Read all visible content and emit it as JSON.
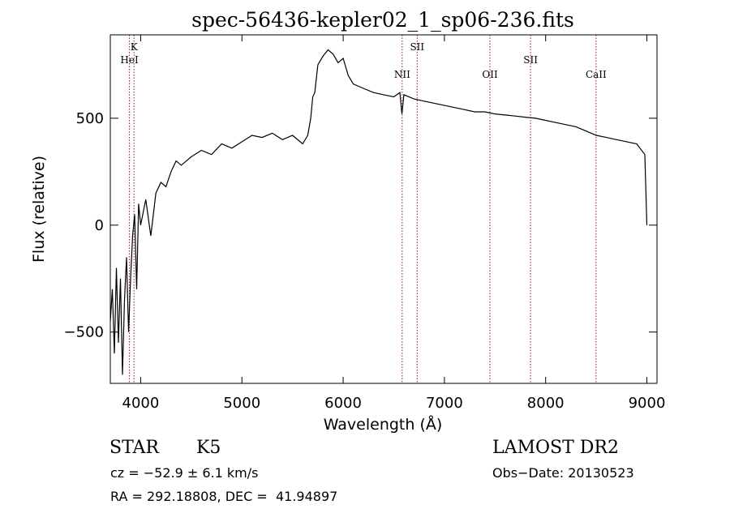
{
  "chart_data": {
    "type": "line",
    "title": "spec-56436-kepler02_1_sp06-236.fits",
    "xlabel": "Wavelength (Å)",
    "ylabel": "Flux (relative)",
    "xlim": [
      3700,
      9100
    ],
    "ylim": [
      -740,
      890
    ],
    "x_ticks": [
      4000,
      5000,
      6000,
      7000,
      8000,
      9000
    ],
    "y_ticks": [
      -500,
      0,
      500
    ],
    "grid": false,
    "legend": "none",
    "line_color": "#000000",
    "marker_color": "#8b1a1a",
    "series": [
      {
        "x": [
          3700,
          3720,
          3740,
          3760,
          3780,
          3800,
          3820,
          3840,
          3860,
          3880,
          3900,
          3920,
          3940,
          3960,
          3980,
          4000,
          4050,
          4100,
          4150,
          4200,
          4250,
          4300,
          4350,
          4400,
          4500,
          4600,
          4700,
          4800,
          4900,
          5000,
          5100,
          5200,
          5300,
          5400,
          5500,
          5600,
          5650,
          5680,
          5700,
          5720,
          5750,
          5800,
          5850,
          5900,
          5950,
          6000,
          6050,
          6100,
          6200,
          6300,
          6400,
          6500,
          6560,
          6580,
          6600,
          6700,
          6800,
          6900,
          7000,
          7100,
          7200,
          7300,
          7400,
          7500,
          7600,
          7700,
          7800,
          7900,
          8000,
          8100,
          8200,
          8300,
          8400,
          8500,
          8600,
          8700,
          8800,
          8900,
          8980,
          9000
        ],
        "y": [
          -450,
          -300,
          -600,
          -200,
          -550,
          -250,
          -700,
          -350,
          -150,
          -500,
          -250,
          -50,
          50,
          -300,
          100,
          0,
          120,
          -50,
          150,
          200,
          180,
          250,
          300,
          280,
          320,
          350,
          330,
          380,
          360,
          390,
          420,
          410,
          430,
          400,
          420,
          380,
          420,
          500,
          600,
          620,
          750,
          790,
          820,
          800,
          760,
          780,
          700,
          660,
          640,
          620,
          610,
          600,
          620,
          520,
          610,
          590,
          580,
          570,
          560,
          550,
          540,
          530,
          530,
          520,
          515,
          510,
          505,
          500,
          490,
          480,
          470,
          460,
          440,
          420,
          410,
          400,
          390,
          380,
          330,
          0
        ]
      }
    ],
    "annotations": [
      {
        "label": "K",
        "x": 3934
      },
      {
        "label": "HeI",
        "x": 3889
      },
      {
        "label": "NII",
        "x": 6583
      },
      {
        "label": "SII",
        "x": 6731
      },
      {
        "label": "OII",
        "x": 7450
      },
      {
        "label": "SII",
        "x": 7851
      },
      {
        "label": "CaII",
        "x": 8498
      }
    ]
  },
  "footer": {
    "object_class": "STAR",
    "subclass": "K5",
    "survey": "LAMOST DR2",
    "cz": "cz = −52.9 ± 6.1 km/s",
    "obs_date": "Obs−Date: 20130523",
    "coords": "RA = 292.18808, DEC =  41.94897"
  }
}
